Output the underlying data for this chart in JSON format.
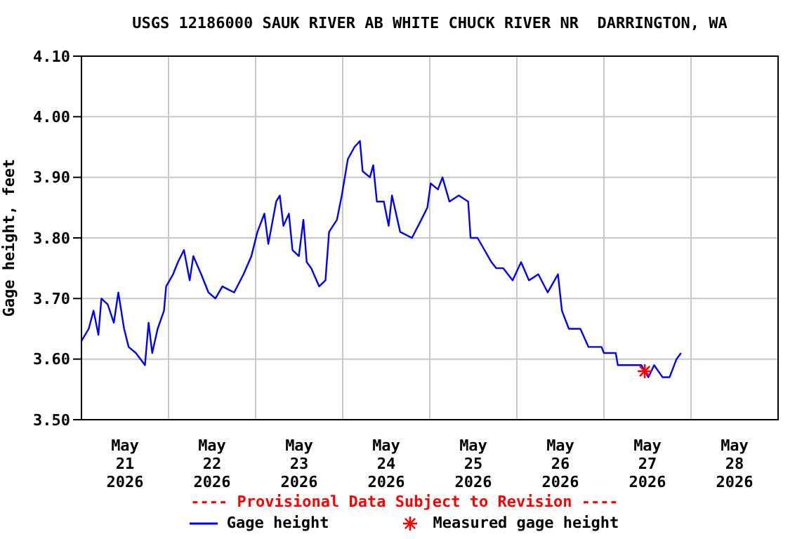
{
  "chart_data": {
    "type": "line",
    "title": "USGS 12186000 SAUK RIVER AB WHITE CHUCK RIVER NR  DARRINGTON, WA",
    "ylabel": "Gage height, feet",
    "annotations": [
      "---- Provisional Data Subject to Revision ----"
    ],
    "xlim": [
      "2026-05-21",
      "2026-05-29"
    ],
    "xticks": [
      {
        "value": "2026-05-21T12:00",
        "label": "May\n21\n2026"
      },
      {
        "value": "2026-05-22T12:00",
        "label": "May\n22\n2026"
      },
      {
        "value": "2026-05-23T12:00",
        "label": "May\n23\n2026"
      },
      {
        "value": "2026-05-24T12:00",
        "label": "May\n24\n2026"
      },
      {
        "value": "2026-05-25T12:00",
        "label": "May\n25\n2026"
      },
      {
        "value": "2026-05-26T12:00",
        "label": "May\n26\n2026"
      },
      {
        "value": "2026-05-27T12:00",
        "label": "May\n27\n2026"
      },
      {
        "value": "2026-05-28T12:00",
        "label": "May\n28\n2026"
      },
      {
        "value": "2026-05-22",
        "label": null
      },
      {
        "value": "2026-05-23",
        "label": null
      },
      {
        "value": "2026-05-24",
        "label": null
      },
      {
        "value": "2026-05-25",
        "label": null
      },
      {
        "value": "2026-05-26",
        "label": null
      },
      {
        "value": "2026-05-27",
        "label": null
      },
      {
        "value": "2026-05-28",
        "label": null
      }
    ],
    "ylim": [
      3.5,
      4.1
    ],
    "yticks": [
      {
        "value": 3.5,
        "label": "3.50"
      },
      {
        "value": 3.6,
        "label": "3.60"
      },
      {
        "value": 3.7,
        "label": "3.70"
      },
      {
        "value": 3.8,
        "label": "3.80"
      },
      {
        "value": 3.9,
        "label": "3.90"
      },
      {
        "value": 4.0,
        "label": "4.00"
      },
      {
        "value": 4.1,
        "label": "4.10"
      }
    ],
    "grid": true,
    "legend": "bottom",
    "series": [
      {
        "name": "Gage height",
        "color": "#0000ff",
        "marker": "none",
        "line_style": "solid",
        "x": [
          "2026-05-21T00:00",
          "2026-05-21T02:00",
          "2026-05-21T03:20",
          "2026-05-21T04:40",
          "2026-05-21T05:30",
          "2026-05-21T07:15",
          "2026-05-21T08:55",
          "2026-05-21T10:10",
          "2026-05-21T11:45",
          "2026-05-21T13:00",
          "2026-05-21T15:00",
          "2026-05-21T17:30",
          "2026-05-21T18:30",
          "2026-05-21T19:30",
          "2026-05-21T21:00",
          "2026-05-21T22:45",
          "2026-05-21T23:20",
          "2026-05-22T01:15",
          "2026-05-22T02:35",
          "2026-05-22T04:15",
          "2026-05-22T05:50",
          "2026-05-22T06:50",
          "2026-05-22T09:00",
          "2026-05-22T11:00",
          "2026-05-22T12:55",
          "2026-05-22T14:50",
          "2026-05-22T18:05",
          "2026-05-22T20:40",
          "2026-05-22T22:50",
          "2026-05-23T00:30",
          "2026-05-23T02:25",
          "2026-05-23T03:30",
          "2026-05-23T05:40",
          "2026-05-23T06:40",
          "2026-05-23T07:40",
          "2026-05-23T09:10",
          "2026-05-23T10:10",
          "2026-05-23T11:55",
          "2026-05-23T13:10",
          "2026-05-23T14:05",
          "2026-05-23T15:20",
          "2026-05-23T17:30",
          "2026-05-23T19:15",
          "2026-05-23T20:15",
          "2026-05-23T22:25",
          "2026-05-23T23:45",
          "2026-05-24T01:25",
          "2026-05-24T03:15",
          "2026-05-24T04:45",
          "2026-05-24T05:30",
          "2026-05-24T07:30",
          "2026-05-24T08:25",
          "2026-05-24T09:25",
          "2026-05-24T11:20",
          "2026-05-24T12:40",
          "2026-05-24T13:35",
          "2026-05-24T15:50",
          "2026-05-24T19:05",
          "2026-05-24T21:40",
          "2026-05-24T23:20",
          "2026-05-25T00:15",
          "2026-05-25T02:15",
          "2026-05-25T03:30",
          "2026-05-25T05:25",
          "2026-05-25T08:00",
          "2026-05-25T10:35",
          "2026-05-25T11:15",
          "2026-05-25T13:10",
          "2026-05-25T15:05",
          "2026-05-25T17:00",
          "2026-05-25T18:20",
          "2026-05-25T20:15",
          "2026-05-25T22:50",
          "2026-05-26T01:10",
          "2026-05-26T03:20",
          "2026-05-26T05:55",
          "2026-05-26T08:30",
          "2026-05-26T11:20",
          "2026-05-26T12:25",
          "2026-05-26T14:20",
          "2026-05-26T17:30",
          "2026-05-26T19:45",
          "2026-05-26T23:20",
          "2026-05-27T00:00",
          "2026-05-27T03:15",
          "2026-05-27T03:50",
          "2026-05-27T07:05",
          "2026-05-27T10:20",
          "2026-05-27T12:15",
          "2026-05-27T13:50",
          "2026-05-27T16:10",
          "2026-05-27T18:05",
          "2026-05-27T20:00",
          "2026-05-27T21:15"
        ],
        "values": [
          3.63,
          3.65,
          3.68,
          3.64,
          3.7,
          3.69,
          3.66,
          3.71,
          3.65,
          3.62,
          3.61,
          3.59,
          3.66,
          3.61,
          3.65,
          3.68,
          3.72,
          3.74,
          3.76,
          3.78,
          3.73,
          3.77,
          3.74,
          3.71,
          3.7,
          3.72,
          3.71,
          3.74,
          3.77,
          3.81,
          3.84,
          3.79,
          3.86,
          3.87,
          3.82,
          3.84,
          3.78,
          3.77,
          3.83,
          3.76,
          3.75,
          3.72,
          3.73,
          3.81,
          3.83,
          3.87,
          3.93,
          3.95,
          3.96,
          3.91,
          3.9,
          3.92,
          3.86,
          3.86,
          3.82,
          3.87,
          3.81,
          3.8,
          3.83,
          3.85,
          3.89,
          3.88,
          3.9,
          3.86,
          3.87,
          3.86,
          3.8,
          3.8,
          3.78,
          3.76,
          3.75,
          3.75,
          3.73,
          3.76,
          3.73,
          3.74,
          3.71,
          3.74,
          3.68,
          3.65,
          3.65,
          3.62,
          3.62,
          3.61,
          3.61,
          3.59,
          3.59,
          3.59,
          3.57,
          3.59,
          3.57,
          3.57,
          3.6,
          3.61
        ]
      },
      {
        "name": "Measured gage height",
        "type": "scatter",
        "color": "#ff0000",
        "marker": "cross",
        "x": [
          "2026-05-27T11:15"
        ],
        "values": [
          3.58
        ]
      }
    ]
  }
}
